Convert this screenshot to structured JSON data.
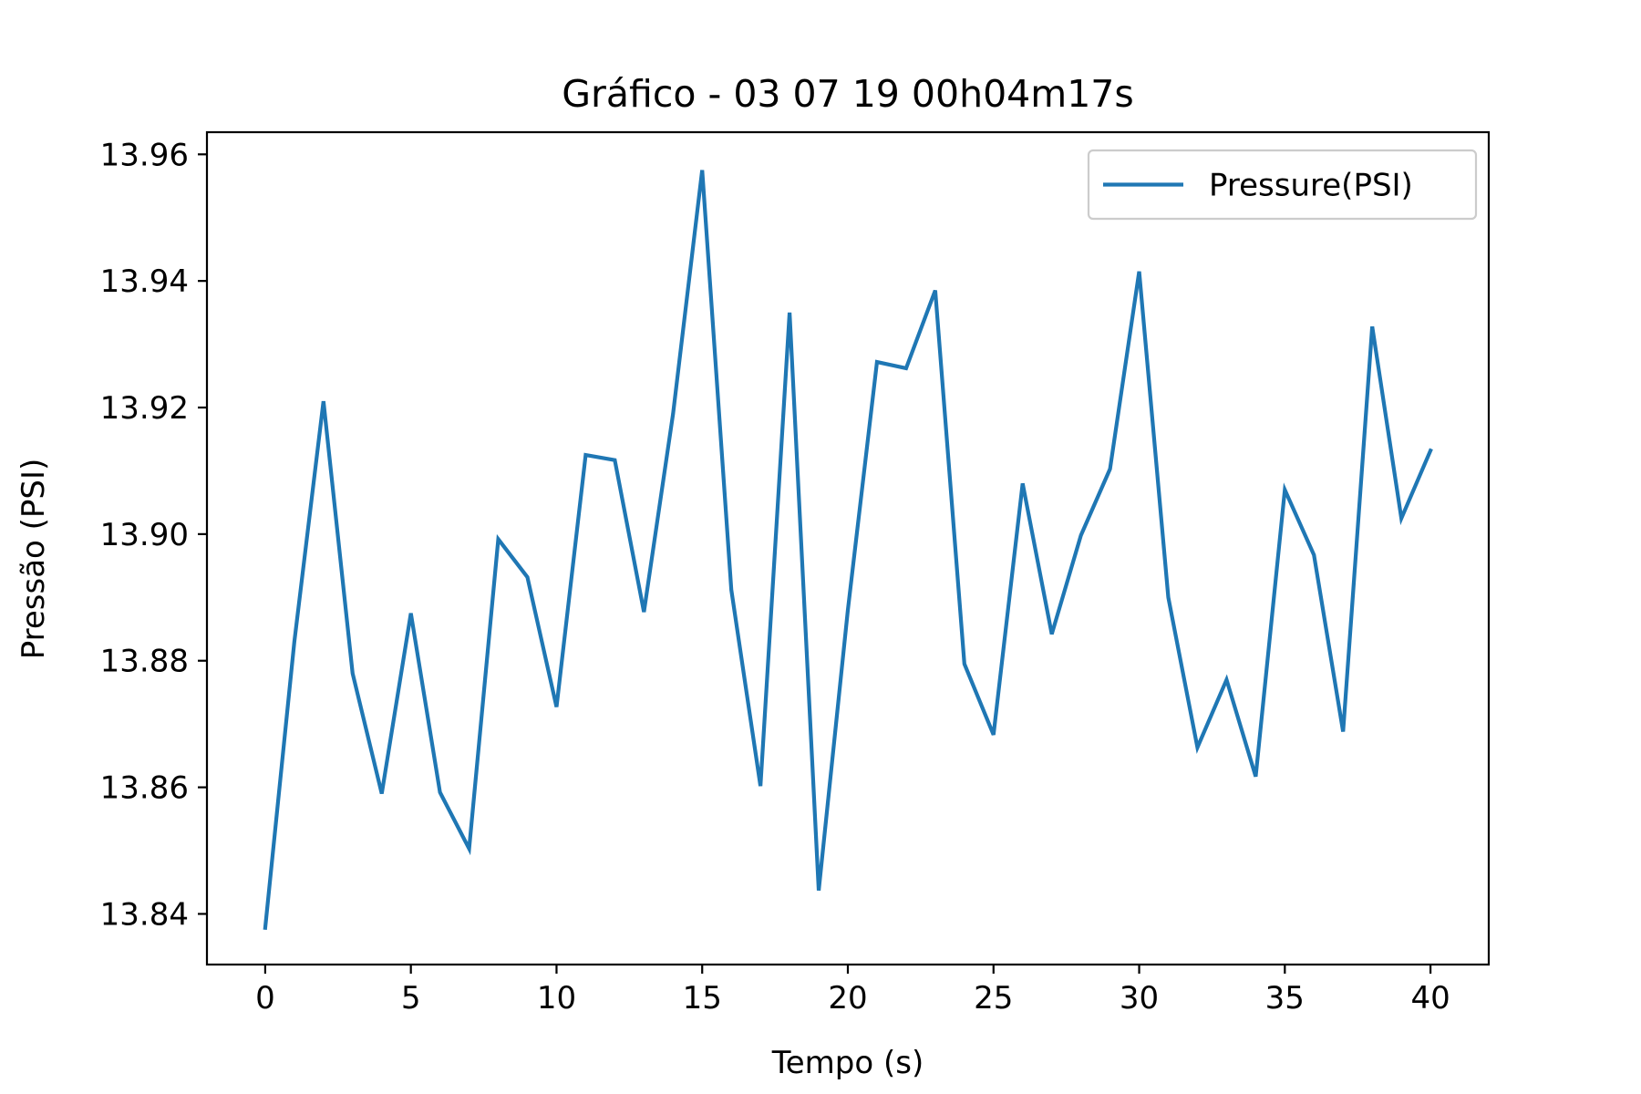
{
  "chart_data": {
    "type": "line",
    "title": "Gráfico - 03 07 19 00h04m17s",
    "xlabel": "Tempo (s)",
    "ylabel": "Pressão (PSI)",
    "xlim": [
      -2,
      42
    ],
    "ylim": [
      13.832,
      13.9635
    ],
    "xticks": [
      0,
      5,
      10,
      15,
      20,
      25,
      30,
      35,
      40
    ],
    "yticks": [
      13.84,
      13.86,
      13.88,
      13.9,
      13.92,
      13.94,
      13.96
    ],
    "xtick_labels": [
      "0",
      "5",
      "10",
      "15",
      "20",
      "25",
      "30",
      "35",
      "40"
    ],
    "ytick_labels": [
      "13.84",
      "13.86",
      "13.88",
      "13.90",
      "13.92",
      "13.94",
      "13.96"
    ],
    "grid": false,
    "legend": "top-right",
    "series": [
      {
        "name": "Pressure(PSI)",
        "color": "#1f77b4",
        "x": [
          0,
          1,
          2,
          3,
          4,
          5,
          6,
          7,
          8,
          9,
          10,
          11,
          12,
          13,
          14,
          15,
          16,
          17,
          18,
          19,
          20,
          21,
          22,
          23,
          24,
          25,
          26,
          27,
          28,
          29,
          30,
          31,
          32,
          33,
          34,
          35,
          36,
          37,
          38,
          39,
          40
        ],
        "y": [
          13.8378,
          13.883,
          13.921,
          13.878,
          13.859,
          13.8875,
          13.8592,
          13.8503,
          13.8992,
          13.8932,
          13.8727,
          13.9125,
          13.9117,
          13.8877,
          13.919,
          13.9575,
          13.8912,
          13.8602,
          13.935,
          13.8437,
          13.888,
          13.9272,
          13.9262,
          13.9385,
          13.8795,
          13.8683,
          13.908,
          13.8842,
          13.8998,
          13.9103,
          13.9415,
          13.89,
          13.8663,
          13.877,
          13.8617,
          13.907,
          13.8967,
          13.8688,
          13.9328,
          13.9025,
          13.9132
        ]
      }
    ]
  }
}
